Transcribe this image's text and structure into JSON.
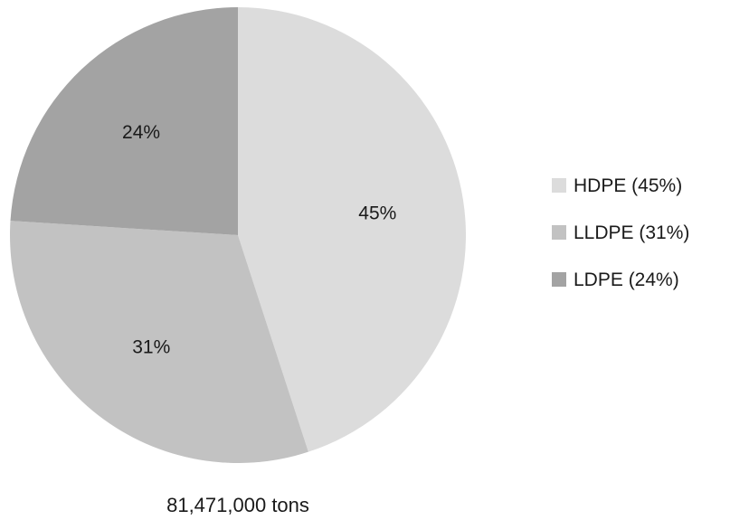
{
  "chart_data": {
    "type": "pie",
    "categories": [
      "HDPE",
      "LLDPE",
      "LDPE"
    ],
    "values": [
      45,
      31,
      24
    ],
    "slice_labels": [
      "45%",
      "31%",
      "24%"
    ],
    "legend": [
      "HDPE (45%)",
      "LLDPE (31%)",
      "LDPE (24%)"
    ],
    "legend_placement": "right",
    "colors": [
      "#dcdcdc",
      "#c2c2c2",
      "#a3a3a3"
    ],
    "start_angle_deg": 0,
    "direction": "clockwise",
    "total_label": "81,471,000 tons"
  }
}
